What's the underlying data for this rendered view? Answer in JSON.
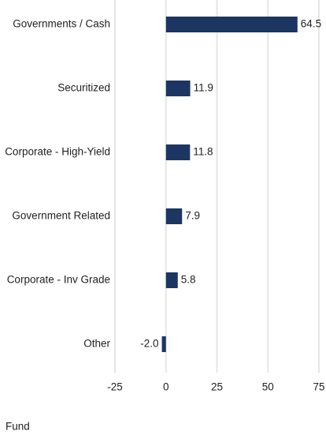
{
  "chart_data": {
    "type": "bar",
    "orientation": "horizontal",
    "categories": [
      "Governments / Cash",
      "Securitized",
      "Corporate - High-Yield",
      "Government Related",
      "Corporate - Inv Grade",
      "Other"
    ],
    "series": [
      {
        "name": "Fund",
        "color": "#1c3661",
        "values": [
          64.5,
          11.9,
          11.8,
          7.9,
          5.8,
          -2.0
        ],
        "value_labels": [
          "64.5",
          "11.9",
          "11.8",
          "7.9",
          "5.8",
          "-2.0"
        ]
      }
    ],
    "xlim": [
      -25,
      75
    ],
    "xticks": [
      -25,
      0,
      25,
      50,
      75
    ],
    "grid": true
  }
}
